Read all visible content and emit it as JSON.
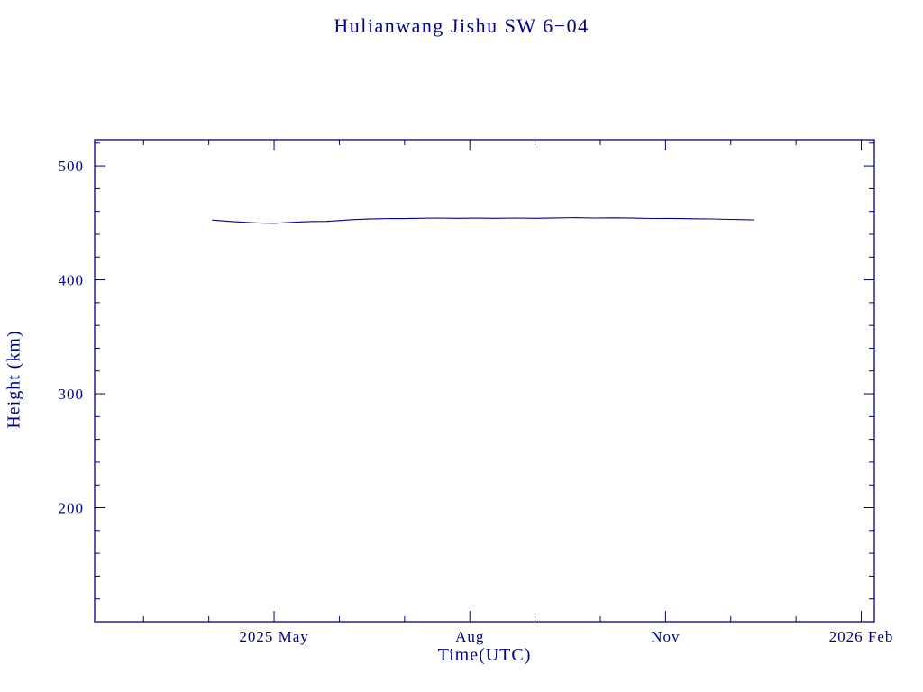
{
  "colors": {
    "text": "#00008b",
    "line": "#00008b",
    "background": "#ffffff"
  },
  "chart_data": {
    "type": "line",
    "title": "Hulianwang Jishu SW 6−04",
    "xlabel": "Time(UTC)",
    "ylabel": "Height (km)",
    "x_unit": "months since 2025-02-01",
    "xlim": [
      0.25,
      12.2
    ],
    "ylim": [
      100,
      523
    ],
    "grid": false,
    "legend": null,
    "line_color": "#00008b",
    "x_major_ticks": [
      {
        "value": 3,
        "label": "2025 May"
      },
      {
        "value": 6,
        "label": "Aug"
      },
      {
        "value": 9,
        "label": "Nov"
      },
      {
        "value": 12,
        "label": "2026 Feb"
      }
    ],
    "x_minor_step": 1,
    "y_major_ticks": [
      {
        "value": 200,
        "label": "200"
      },
      {
        "value": 300,
        "label": "300"
      },
      {
        "value": 400,
        "label": "400"
      },
      {
        "value": 500,
        "label": "500"
      }
    ],
    "y_minor_step": 20,
    "series": [
      {
        "name": "Height (km)",
        "x": [
          2.05,
          2.2,
          2.4,
          2.6,
          2.8,
          3.0,
          3.2,
          3.4,
          3.6,
          3.8,
          4.0,
          4.2,
          4.4,
          4.6,
          4.8,
          5.0,
          5.2,
          5.5,
          5.8,
          6.1,
          6.4,
          6.7,
          7.0,
          7.3,
          7.6,
          7.9,
          8.2,
          8.5,
          8.8,
          9.1,
          9.4,
          9.7,
          10.0,
          10.2,
          10.36
        ],
        "y": [
          452.5,
          451.8,
          451.0,
          450.3,
          449.8,
          449.6,
          450.2,
          450.8,
          451.2,
          451.3,
          452.0,
          452.8,
          453.3,
          453.6,
          453.8,
          453.7,
          454.0,
          454.2,
          454.0,
          454.1,
          454.0,
          454.2,
          454.0,
          454.3,
          454.5,
          454.2,
          454.4,
          454.1,
          453.8,
          453.9,
          453.6,
          453.4,
          453.0,
          452.8,
          452.6
        ]
      }
    ]
  }
}
